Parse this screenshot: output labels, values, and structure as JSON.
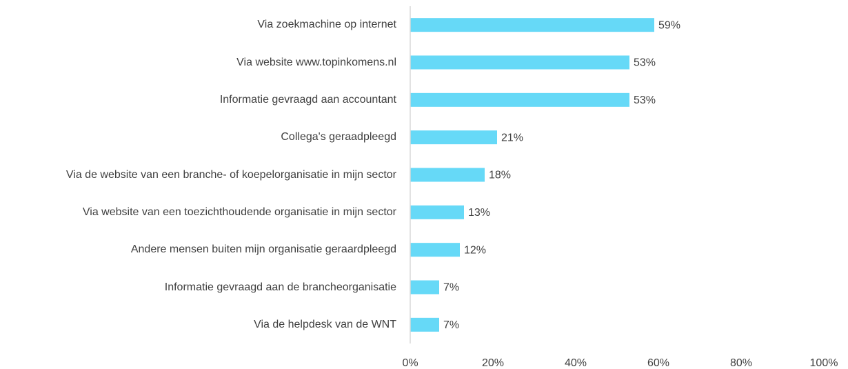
{
  "chart_data": {
    "type": "bar",
    "orientation": "horizontal",
    "categories": [
      "Via zoekmachine op internet",
      "Via website www.topinkomens.nl",
      "Informatie gevraagd aan accountant",
      "Collega's geraadpleegd",
      "Via de website van een branche- of koepelorganisatie in mijn sector",
      "Via website van een toezichthoudende organisatie in mijn sector",
      "Andere mensen buiten mijn organisatie geraardpleegd",
      "Informatie gevraagd aan de brancheorganisatie",
      "Via de helpdesk van de WNT"
    ],
    "values": [
      59,
      53,
      53,
      21,
      18,
      13,
      12,
      7,
      7
    ],
    "value_labels": [
      "59%",
      "53%",
      "53%",
      "21%",
      "18%",
      "13%",
      "12%",
      "7%",
      "7%"
    ],
    "color": "#66d9f7",
    "xlim": [
      0,
      100
    ],
    "xticks": [
      {
        "value": 0,
        "label": "0%"
      },
      {
        "value": 20,
        "label": "20%"
      },
      {
        "value": 40,
        "label": "40%"
      },
      {
        "value": 60,
        "label": "60%"
      },
      {
        "value": 80,
        "label": "80%"
      },
      {
        "value": 100,
        "label": "100%"
      }
    ],
    "grid": false
  }
}
